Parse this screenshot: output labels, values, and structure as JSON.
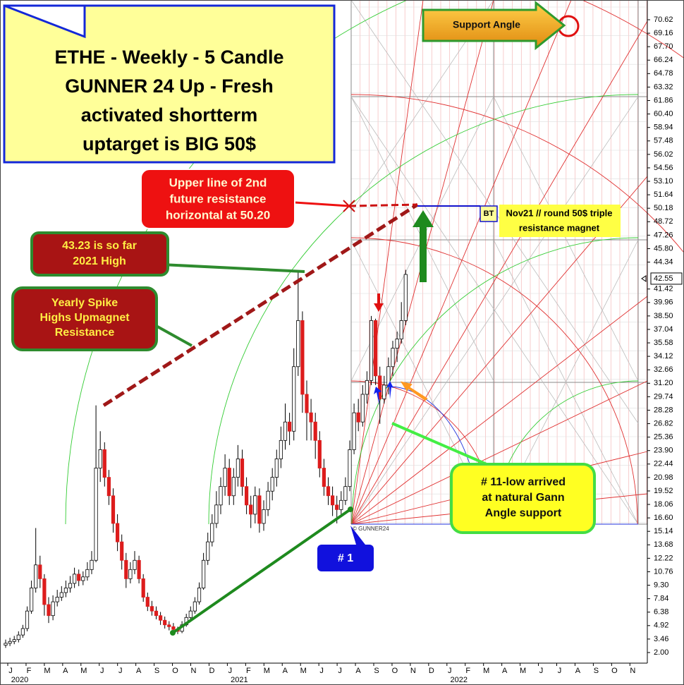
{
  "chart_data": {
    "type": "candlestick",
    "title_lines": [
      "ETHE - Weekly - 5 Candle",
      "GUNNER 24 Up - Fresh",
      "activated shortterm",
      "uptarget is BIG 50$"
    ],
    "months": [
      "J",
      "F",
      "M",
      "A",
      "M",
      "J",
      "J",
      "A",
      "S",
      "O",
      "N",
      "D",
      "J",
      "F",
      "M",
      "A",
      "M",
      "J",
      "J",
      "A",
      "S",
      "O",
      "N",
      "D",
      "J",
      "F",
      "M",
      "A",
      "M",
      "J",
      "J",
      "A",
      "S",
      "O",
      "N"
    ],
    "years": [
      "2020",
      "2021",
      "2022"
    ],
    "open": [
      2.8,
      3.0,
      3.2,
      3.4,
      3.9,
      4.6,
      6.5,
      9.0,
      11.5,
      10.0,
      7.2,
      6.0,
      7.5,
      8.0,
      8.5,
      9.0,
      9.5,
      10.5,
      9.8,
      10.2,
      11.0,
      12.0,
      22.0,
      24.0,
      21.0,
      19.0,
      16.0,
      14.0,
      12.0,
      10.0,
      11.0,
      12.0,
      10.0,
      8.0,
      7.0,
      6.5,
      6.0,
      5.5,
      5.0,
      4.8,
      4.5,
      4.3,
      5.0,
      5.8,
      6.5,
      7.5,
      9.0,
      12.0,
      14.0,
      16.0,
      18.0,
      20.0,
      22.0,
      19.0,
      21.0,
      23.0,
      20.0,
      18.0,
      17.0,
      19.0,
      16.0,
      17.5,
      19.5,
      21.0,
      23.0,
      25.0,
      27.0,
      26.0,
      33.0,
      38.0,
      30.0,
      28.0,
      27.0,
      25.0,
      22.0,
      20.0,
      19.0,
      18.0,
      17.5,
      18.5,
      20.0,
      24.0,
      28.0,
      27.0,
      30.0,
      31.5,
      38.0,
      32.0,
      29.5,
      31.0,
      33.0,
      35.0,
      36.0,
      38.0
    ],
    "high": [
      3.4,
      3.6,
      3.8,
      4.3,
      5.0,
      7.0,
      9.8,
      15.5,
      12.5,
      10.5,
      8.0,
      8.2,
      8.8,
      9.2,
      9.8,
      10.3,
      11.2,
      11.0,
      10.8,
      11.8,
      13.0,
      28.8,
      26.0,
      24.8,
      21.8,
      19.8,
      17.0,
      14.8,
      12.8,
      11.8,
      13.0,
      12.5,
      10.5,
      8.5,
      7.6,
      7.0,
      6.4,
      5.9,
      5.4,
      5.2,
      4.8,
      5.4,
      6.2,
      7.0,
      8.0,
      9.6,
      12.8,
      15.0,
      17.0,
      19.5,
      21.0,
      23.5,
      23.0,
      22.0,
      24.5,
      24.0,
      21.0,
      19.0,
      20.0,
      19.8,
      18.5,
      20.5,
      22.0,
      24.0,
      26.5,
      29.0,
      28.0,
      35.0,
      43.23,
      39.0,
      31.5,
      29.5,
      28.0,
      26.0,
      23.0,
      21.0,
      20.0,
      19.0,
      19.5,
      21.0,
      25.0,
      29.0,
      29.5,
      31.0,
      32.5,
      38.5,
      38.2,
      33.0,
      32.0,
      34.0,
      35.8,
      36.8,
      40.0,
      43.5
    ],
    "low": [
      2.5,
      2.7,
      2.9,
      3.1,
      3.6,
      4.3,
      6.2,
      8.5,
      9.0,
      6.0,
      5.2,
      5.5,
      7.0,
      7.6,
      8.0,
      8.5,
      9.0,
      9.2,
      9.3,
      9.8,
      10.5,
      11.8,
      20.5,
      20.0,
      18.0,
      15.0,
      13.0,
      11.0,
      9.0,
      9.5,
      10.5,
      9.5,
      7.5,
      6.5,
      6.0,
      5.6,
      5.0,
      4.6,
      4.4,
      4.2,
      4.0,
      4.1,
      4.8,
      5.5,
      6.2,
      7.2,
      8.8,
      11.5,
      13.5,
      15.5,
      17.0,
      19.0,
      18.0,
      18.0,
      20.0,
      19.0,
      17.0,
      15.5,
      16.0,
      15.0,
      15.2,
      16.8,
      18.5,
      20.0,
      22.0,
      24.0,
      24.5,
      25.0,
      32.0,
      28.0,
      25.0,
      25.0,
      23.0,
      21.0,
      19.0,
      18.0,
      16.8,
      16.0,
      17.0,
      18.0,
      19.5,
      23.5,
      26.0,
      26.5,
      29.0,
      31.0,
      31.0,
      26.8,
      29.0,
      30.0,
      32.0,
      33.5,
      35.5,
      37.5
    ],
    "close": [
      3.0,
      3.2,
      3.4,
      3.9,
      4.6,
      6.5,
      9.0,
      11.5,
      10.0,
      7.2,
      6.0,
      7.5,
      8.0,
      8.5,
      9.0,
      9.5,
      10.5,
      9.8,
      10.2,
      11.0,
      12.0,
      22.0,
      24.0,
      21.0,
      19.0,
      16.0,
      14.0,
      12.0,
      10.0,
      11.0,
      12.0,
      10.0,
      8.0,
      7.0,
      6.5,
      6.0,
      5.5,
      5.0,
      4.8,
      4.5,
      4.3,
      5.0,
      5.8,
      6.5,
      7.5,
      9.0,
      12.0,
      14.0,
      16.0,
      18.0,
      20.0,
      22.0,
      19.0,
      21.0,
      23.0,
      20.0,
      18.0,
      17.0,
      19.0,
      16.0,
      17.5,
      19.5,
      21.0,
      23.0,
      25.0,
      27.0,
      26.0,
      33.0,
      38.0,
      30.0,
      28.0,
      27.0,
      25.0,
      22.0,
      20.0,
      19.0,
      18.0,
      17.5,
      18.5,
      20.0,
      24.0,
      28.0,
      27.0,
      30.0,
      31.5,
      38.0,
      32.0,
      29.5,
      31.0,
      33.0,
      35.0,
      36.0,
      38.0,
      43.0
    ],
    "up_color": "#ffffff",
    "down_color": "#dd1c1c",
    "ylim": [
      0.85,
      72.15
    ],
    "yticks": [
      70.62,
      69.16,
      {
        "value": 67.7,
        "label": "67.70"
      },
      66.24,
      64.78,
      63.32,
      61.86,
      {
        "value": 60.4,
        "label": "60.40"
      },
      58.94,
      57.48,
      56.02,
      54.56,
      {
        "value": 53.1,
        "label": "53.10"
      },
      51.64,
      50.18,
      48.72,
      47.26,
      {
        "value": 45.8,
        "label": "45.80"
      },
      44.34,
      41.42,
      39.96,
      {
        "value": 38.5,
        "label": "38.50"
      },
      37.04,
      35.58,
      34.12,
      32.66,
      {
        "value": 31.2,
        "label": "31.20"
      },
      29.74,
      28.28,
      26.82,
      25.36,
      {
        "value": 23.9,
        "label": "23.90"
      },
      22.44,
      20.98,
      19.52,
      18.06,
      {
        "value": 16.6,
        "label": "16.60"
      },
      15.14,
      13.68,
      12.22,
      10.76,
      {
        "value": 9.3,
        "label": "9.30"
      },
      7.84,
      6.38,
      4.92,
      3.46,
      {
        "value": 2,
        "label": "2.00"
      }
    ],
    "last_price": 42.55,
    "annotations": {
      "support_angle": "Support Angle",
      "resistance_lines": [
        "Upper line of 2nd",
        "future resistance",
        "horizontal at 50.20"
      ],
      "high_lines": [
        "43.23 is so far",
        "2021 High"
      ],
      "spike_lines": [
        "Yearly Spike",
        "Highs Upmagnet",
        "Resistance"
      ],
      "bt": "BT",
      "magnet_lines": [
        "Nov21 // round 50$ triple",
        "resistance magnet"
      ],
      "gann_lines": [
        "# 11-low arrived",
        "at natural Gann",
        "Angle support"
      ],
      "number_one": "# 1",
      "copyright": "© GUNNER24"
    }
  }
}
